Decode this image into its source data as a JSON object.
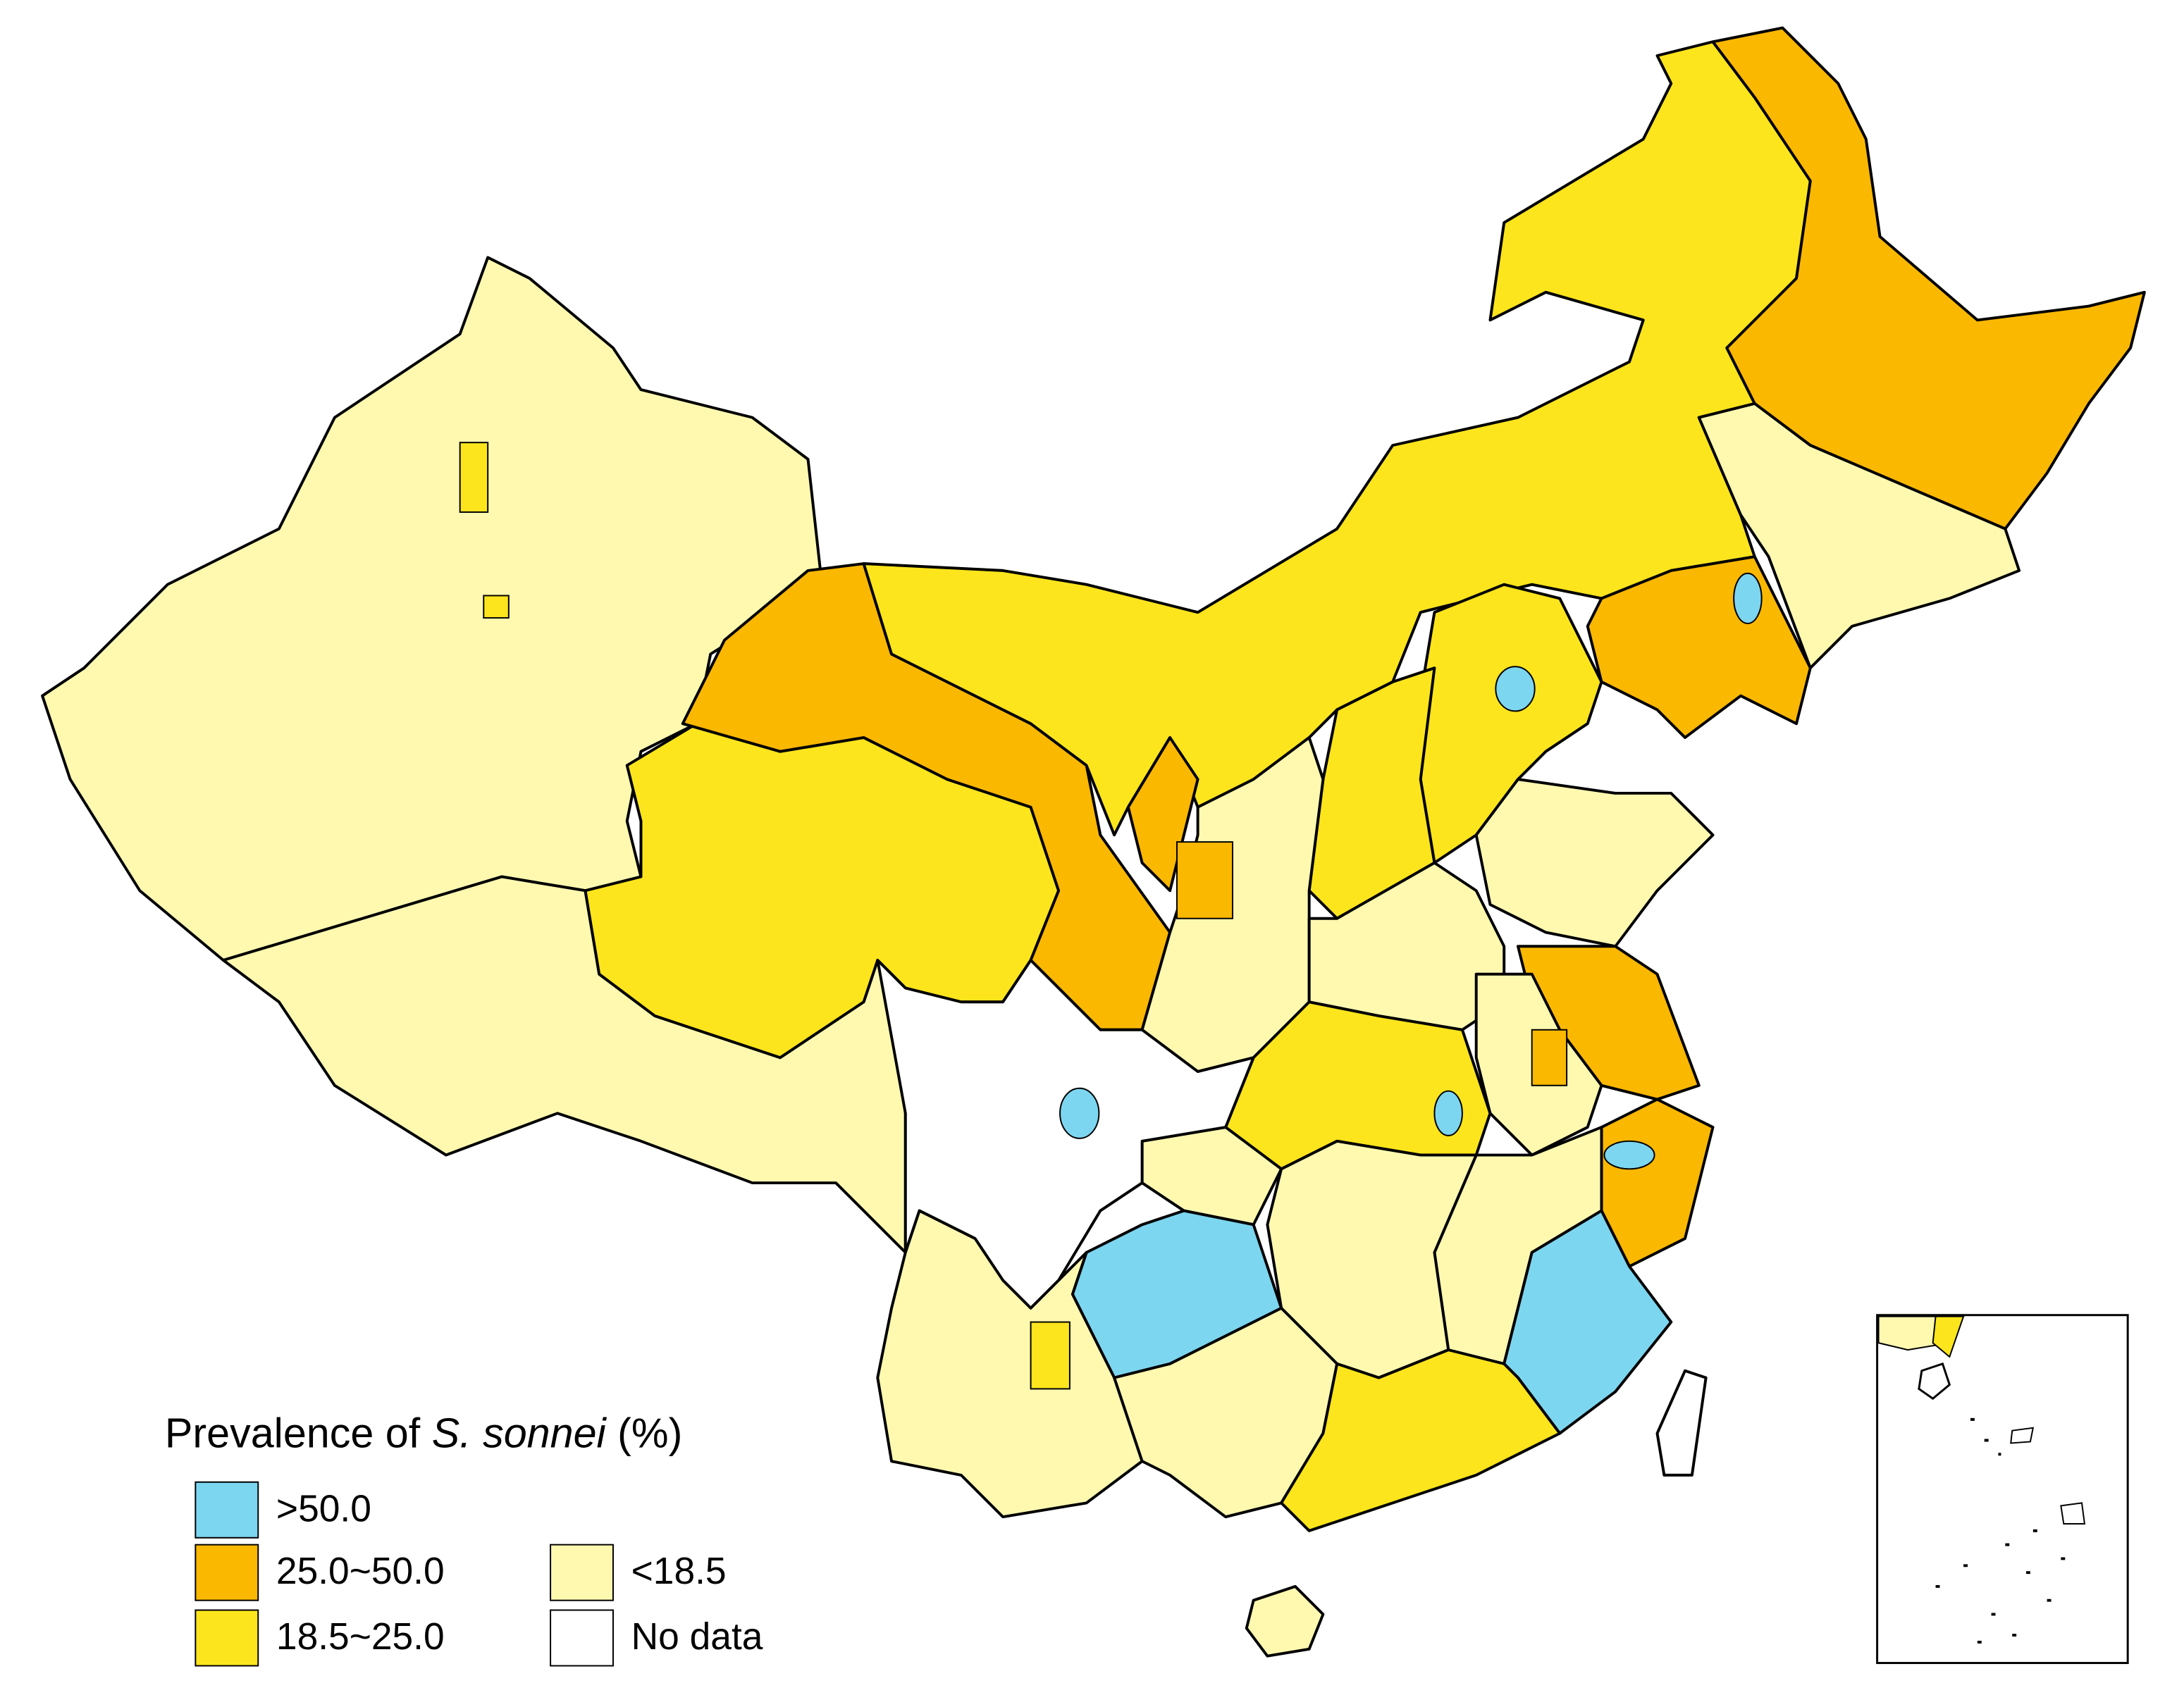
{
  "legend": {
    "title_prefix": "Prevalence of ",
    "title_italic": "S. sonnei",
    "title_suffix": " (%)",
    "items": [
      {
        "label": ">50.0",
        "color": "#7dd6f0"
      },
      {
        "label": "25.0~50.0",
        "color": "#fbb800"
      },
      {
        "label": "18.5~25.0",
        "color": "#fce51c"
      },
      {
        "label": "<18.5",
        "color": "#fff9b0"
      },
      {
        "label": "No data",
        "color": "#ffffff"
      }
    ]
  }
}
